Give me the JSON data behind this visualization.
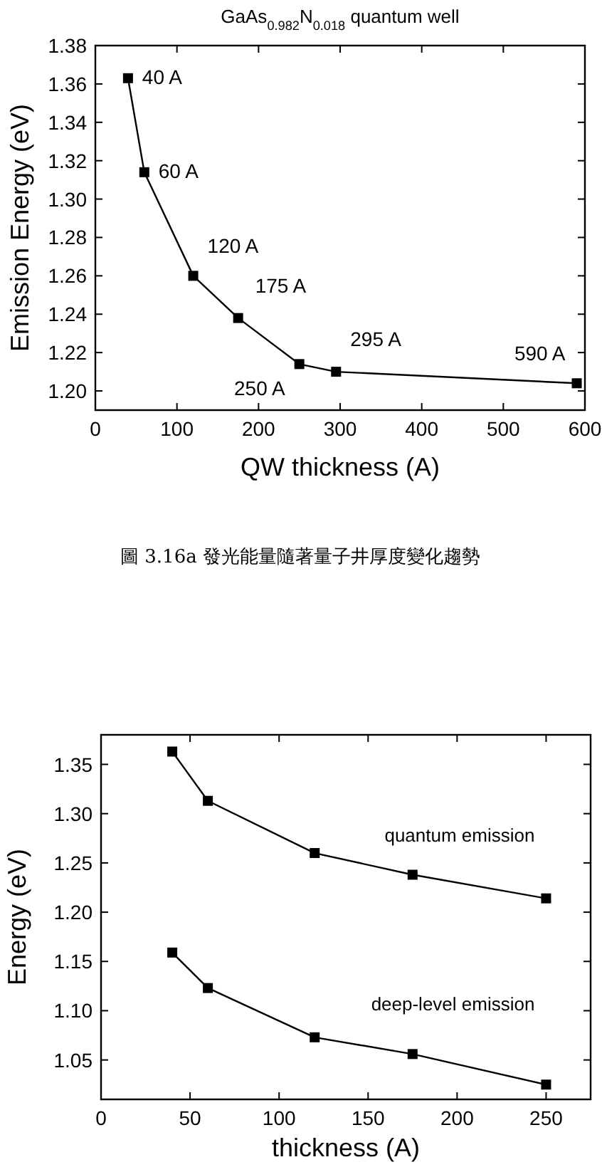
{
  "chart_data": [
    {
      "type": "line",
      "title": "GaAs$_{0.982}$N$_{0.018}$ quantum well",
      "xlabel": "QW thickness (A)",
      "ylabel": "Emission Energy (eV)",
      "x": [
        40,
        60,
        120,
        175,
        250,
        295,
        590
      ],
      "series": [
        {
          "color": "#000000",
          "values": [
            1.363,
            1.314,
            1.26,
            1.238,
            1.214,
            1.21,
            1.204
          ]
        }
      ],
      "xlim": [
        0,
        600
      ],
      "xticks": [
        0,
        100,
        200,
        300,
        400,
        500,
        600
      ],
      "ylim": [
        1.19,
        1.38
      ],
      "yticks": [
        {
          "value": 1.2,
          "label": "1.20"
        },
        {
          "value": 1.22,
          "label": "1.22"
        },
        {
          "value": 1.24,
          "label": "1.24"
        },
        {
          "value": 1.26,
          "label": "1.26"
        },
        {
          "value": 1.28,
          "label": "1.28"
        },
        {
          "value": 1.3,
          "label": "1.30"
        },
        {
          "value": 1.32,
          "label": "1.32"
        },
        {
          "value": 1.34,
          "label": "1.34"
        },
        {
          "value": 1.36,
          "label": "1.36"
        },
        {
          "value": 1.38,
          "label": "1.38"
        }
      ],
      "marker": "square",
      "line_style": "solid",
      "annotations": [
        {
          "text": "40 A",
          "x": 40,
          "y": 1.363
        },
        {
          "text": "60 A",
          "x": 60,
          "y": 1.314
        },
        {
          "text": "120 A",
          "x": 120,
          "y": 1.26
        },
        {
          "text": "175 A",
          "x": 175,
          "y": 1.238
        },
        {
          "text": "250 A",
          "x": 250,
          "y": 1.214
        },
        {
          "text": "295 A",
          "x": 295,
          "y": 1.21
        },
        {
          "text": "590 A",
          "x": 590,
          "y": 1.204
        },
        "圖 3.16a 發光能量隨著量子井厚度變化趨勢"
      ]
    },
    {
      "type": "line",
      "xlabel": "thickness (A)",
      "ylabel": "Energy (eV)",
      "x": [
        40,
        60,
        120,
        175,
        250
      ],
      "series": [
        {
          "name": "quantum emission",
          "color": "#000000",
          "values": [
            1.363,
            1.313,
            1.26,
            1.238,
            1.214
          ]
        },
        {
          "name": "deep-level emission",
          "color": "#000000",
          "values": [
            1.159,
            1.123,
            1.073,
            1.056,
            1.025
          ]
        }
      ],
      "xlim": [
        0,
        275
      ],
      "xticks": [
        0,
        50,
        100,
        150,
        200,
        250
      ],
      "ylim": [
        1.01,
        1.38
      ],
      "yticks": [
        {
          "value": 1.05,
          "label": "1.05"
        },
        {
          "value": 1.1,
          "label": "1.10"
        },
        {
          "value": 1.15,
          "label": "1.15"
        },
        {
          "value": 1.2,
          "label": "1.20"
        },
        {
          "value": 1.25,
          "label": "1.25"
        },
        {
          "value": 1.3,
          "label": "1.30"
        },
        {
          "value": 1.35,
          "label": "1.35"
        }
      ],
      "marker": "square",
      "line_style": "solid"
    }
  ]
}
